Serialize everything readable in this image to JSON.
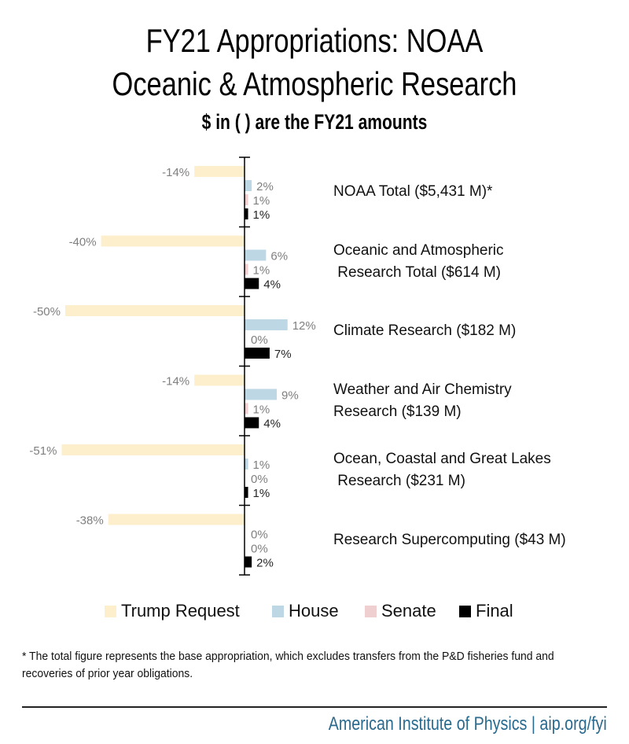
{
  "title_line1": "FY21 Appropriations: NOAA",
  "title_line2": "Oceanic & Atmospheric Research",
  "subtitle": "$ in ( ) are the FY21 amounts",
  "footnote": "* The total figure represents the base appropriation, which excludes transfers from the P&D fisheries fund and recoveries of prior year obligations.",
  "credit": "American Institute of Physics | aip.org/fyi",
  "chart_data": {
    "type": "bar",
    "orientation": "horizontal",
    "title": "FY21 Appropriations: NOAA Oceanic & Atmospheric Research",
    "subtitle": "$ in ( ) are the FY21 amounts",
    "xlabel": "",
    "ylabel": "",
    "unit": "%",
    "xlim": [
      -55,
      20
    ],
    "grid": false,
    "legend_position": "bottom",
    "categories": [
      "NOAA Total ($5,431 M)*",
      "Oceanic and Atmospheric\n Research Total ($614 M)",
      "Climate Research ($182 M)",
      "Weather and Air Chemistry\nResearch ($139 M)",
      "Ocean, Coastal and Great Lakes\n Research ($231 M)",
      "Research Supercomputing ($43 M)"
    ],
    "series": [
      {
        "name": "Trump Request",
        "color": "#FDEFCC",
        "label_color": "#7F7F7F",
        "values": [
          -14,
          -40,
          -50,
          -14,
          -51,
          -38
        ]
      },
      {
        "name": "House",
        "color": "#BDD7E4",
        "label_color": "#7F7F7F",
        "values": [
          2,
          6,
          12,
          9,
          1,
          0
        ]
      },
      {
        "name": "Senate",
        "color": "#F0CFD0",
        "label_color": "#7F7F7F",
        "values": [
          1,
          1,
          0,
          1,
          0,
          0
        ]
      },
      {
        "name": "Final",
        "color": "#000000",
        "label_color": "#262626",
        "values": [
          1,
          4,
          7,
          4,
          1,
          2
        ]
      }
    ]
  }
}
